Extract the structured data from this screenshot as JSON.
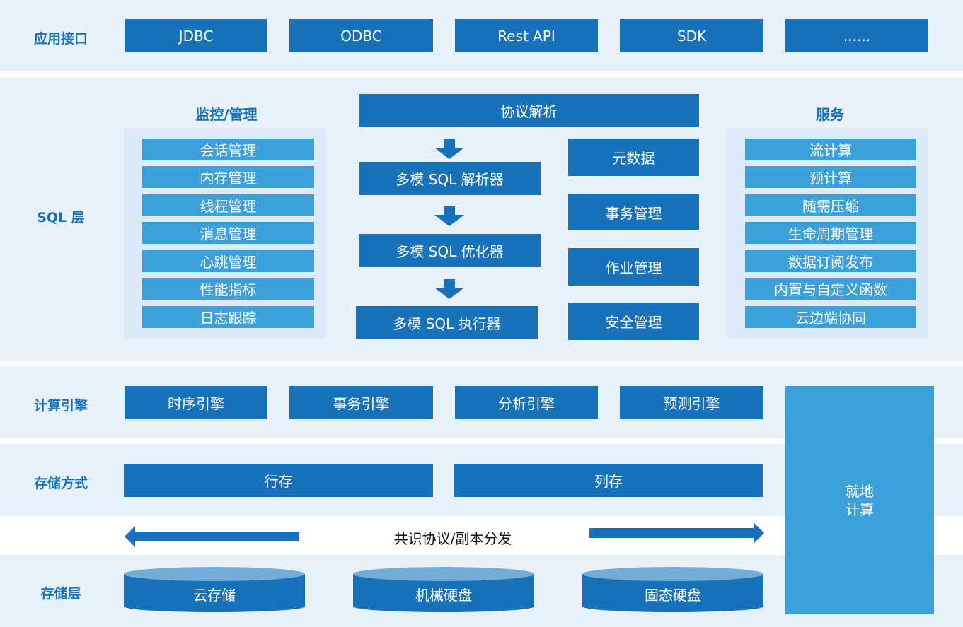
{
  "colors": {
    "dark_blue": "#1771bb",
    "light_blue": "#3ca1db",
    "band_bg": "#e8f0f8",
    "panel_bg": "#ddeaf9"
  },
  "layers": {
    "api": "应用接口",
    "sql": "SQL 层",
    "compute": "计算引擎",
    "storage_mode": "存储方式",
    "storage": "存储层"
  },
  "api": [
    "JDBC",
    "ODBC",
    "Rest API",
    "SDK",
    "......"
  ],
  "sql": {
    "monitor_title": "监控/管理",
    "monitor": [
      "会话管理",
      "内存管理",
      "线程管理",
      "消息管理",
      "心跳管理",
      "性能指标",
      "日志跟踪"
    ],
    "protocol": "协议解析",
    "parser": "多模 SQL 解析器",
    "optimizer": "多模 SQL 优化器",
    "executor": "多模 SQL 执行器",
    "middle": [
      "元数据",
      "事务管理",
      "作业管理",
      "安全管理"
    ],
    "service_title": "服务",
    "services": [
      "流计算",
      "预计算",
      "随需压缩",
      "生命周期管理",
      "数据订阅发布",
      "内置与自定义函数",
      "云边端协同"
    ]
  },
  "engines": [
    "时序引擎",
    "事务引擎",
    "分析引擎",
    "预测引擎"
  ],
  "local_compute": [
    "就地",
    "计算"
  ],
  "storage_modes": [
    "行存",
    "列存"
  ],
  "consensus": "共识协议/副本分发",
  "storage": [
    "云存储",
    "机械硬盘",
    "固态硬盘"
  ]
}
